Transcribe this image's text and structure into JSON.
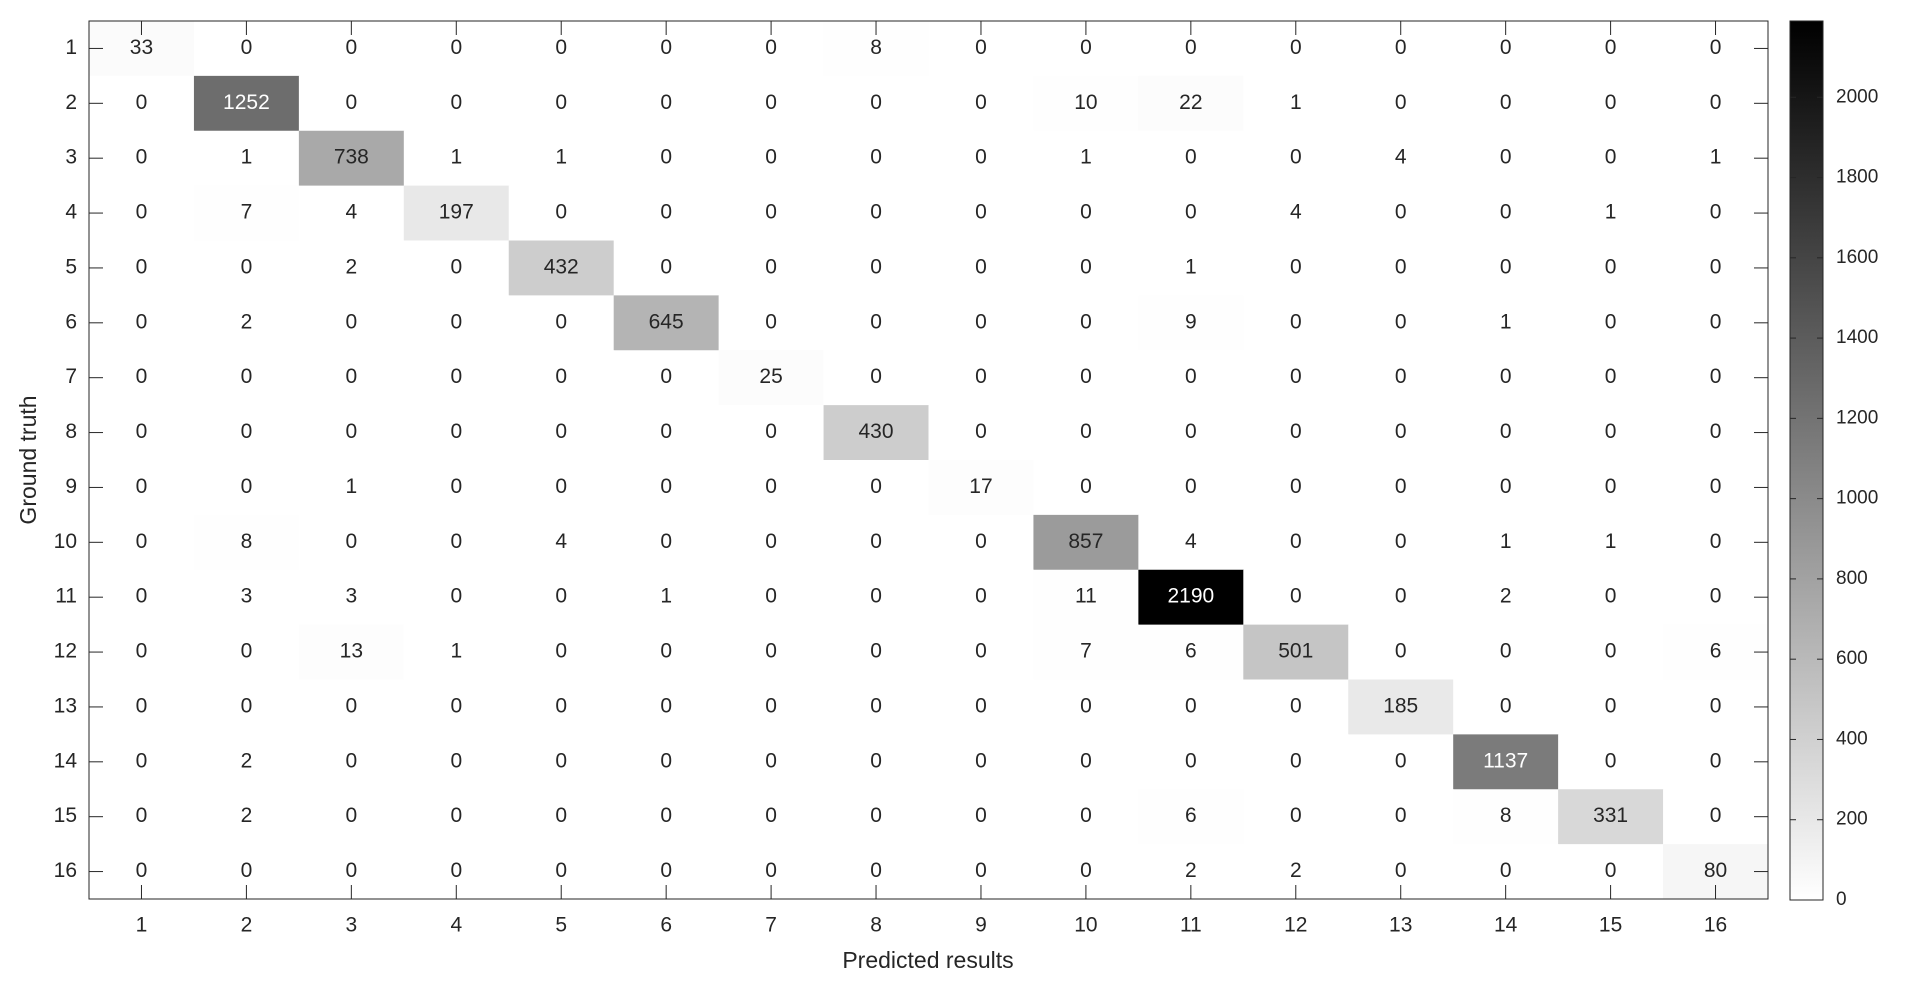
{
  "chart_data": {
    "type": "heatmap",
    "x_label": "Predicted results",
    "y_label": "Ground truth",
    "categories": [
      "1",
      "2",
      "3",
      "4",
      "5",
      "6",
      "7",
      "8",
      "9",
      "10",
      "11",
      "12",
      "13",
      "14",
      "15",
      "16"
    ],
    "z": [
      [
        33,
        0,
        0,
        0,
        0,
        0,
        0,
        8,
        0,
        0,
        0,
        0,
        0,
        0,
        0,
        0
      ],
      [
        0,
        1252,
        0,
        0,
        0,
        0,
        0,
        0,
        0,
        10,
        22,
        1,
        0,
        0,
        0,
        0
      ],
      [
        0,
        1,
        738,
        1,
        1,
        0,
        0,
        0,
        0,
        1,
        0,
        0,
        4,
        0,
        0,
        1
      ],
      [
        0,
        7,
        4,
        197,
        0,
        0,
        0,
        0,
        0,
        0,
        0,
        4,
        0,
        0,
        1,
        0
      ],
      [
        0,
        0,
        2,
        0,
        432,
        0,
        0,
        0,
        0,
        0,
        1,
        0,
        0,
        0,
        0,
        0
      ],
      [
        0,
        2,
        0,
        0,
        0,
        645,
        0,
        0,
        0,
        0,
        9,
        0,
        0,
        1,
        0,
        0
      ],
      [
        0,
        0,
        0,
        0,
        0,
        0,
        25,
        0,
        0,
        0,
        0,
        0,
        0,
        0,
        0,
        0
      ],
      [
        0,
        0,
        0,
        0,
        0,
        0,
        0,
        430,
        0,
        0,
        0,
        0,
        0,
        0,
        0,
        0
      ],
      [
        0,
        0,
        1,
        0,
        0,
        0,
        0,
        0,
        17,
        0,
        0,
        0,
        0,
        0,
        0,
        0
      ],
      [
        0,
        8,
        0,
        0,
        4,
        0,
        0,
        0,
        0,
        857,
        4,
        0,
        0,
        1,
        1,
        0
      ],
      [
        0,
        3,
        3,
        0,
        0,
        1,
        0,
        0,
        0,
        11,
        2190,
        0,
        0,
        2,
        0,
        0
      ],
      [
        0,
        0,
        13,
        1,
        0,
        0,
        0,
        0,
        0,
        7,
        6,
        501,
        0,
        0,
        0,
        6
      ],
      [
        0,
        0,
        0,
        0,
        0,
        0,
        0,
        0,
        0,
        0,
        0,
        0,
        185,
        0,
        0,
        0
      ],
      [
        0,
        2,
        0,
        0,
        0,
        0,
        0,
        0,
        0,
        0,
        0,
        0,
        0,
        1137,
        0,
        0
      ],
      [
        0,
        2,
        0,
        0,
        0,
        0,
        0,
        0,
        0,
        0,
        6,
        0,
        0,
        8,
        331,
        0
      ],
      [
        0,
        0,
        0,
        0,
        0,
        0,
        0,
        0,
        0,
        0,
        2,
        2,
        0,
        0,
        0,
        80
      ]
    ],
    "colormap": [
      "#ffffff",
      "#000000"
    ],
    "clim": [
      0,
      2190
    ],
    "cticks": [
      0,
      200,
      400,
      600,
      800,
      1000,
      1200,
      1400,
      1600,
      1800,
      2000
    ]
  }
}
